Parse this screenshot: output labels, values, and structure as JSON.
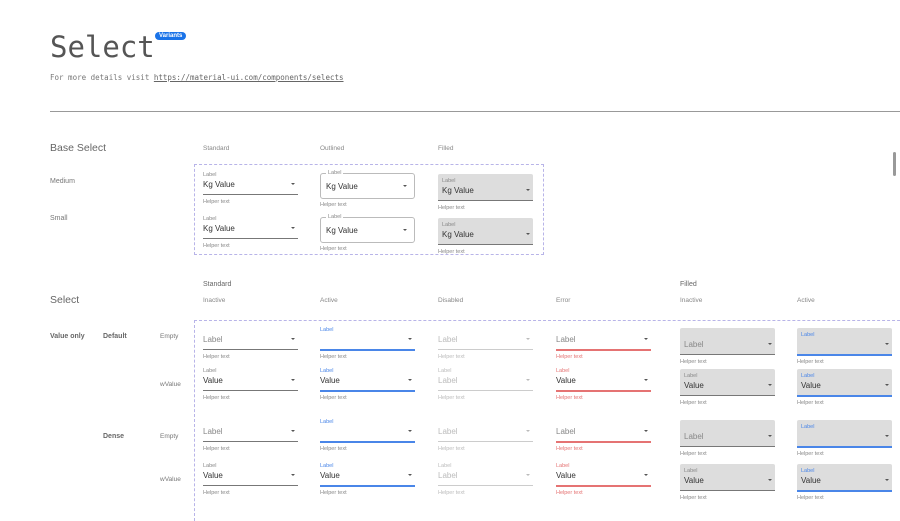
{
  "header": {
    "title": "Select",
    "badge": "Variants",
    "subtitle_prefix": "For more details visit ",
    "link": "https://material-ui.com/components/selects"
  },
  "base": {
    "title": "Base Select",
    "columns": [
      "Standard",
      "Outlined",
      "Filled"
    ],
    "rows": [
      "Medium",
      "Small"
    ],
    "label": "Label",
    "value": "Kg  Value",
    "helper": "Helper text"
  },
  "select": {
    "title": "Select",
    "group_standard": "Standard",
    "group_filled": "Filled",
    "columns": [
      "Inactive",
      "Active",
      "Disabled",
      "Error",
      "Inactive",
      "Active"
    ],
    "row_group": "Value only",
    "sub_default": "Default",
    "sub_dense": "Dense",
    "row_empty": "Empty",
    "row_wvalue": "wValue",
    "label": "Label",
    "value": "Value",
    "helper": "Helper text"
  },
  "colors": {
    "accent": "#4a86e8",
    "error": "#e57373",
    "badge": "#1a73e8"
  }
}
